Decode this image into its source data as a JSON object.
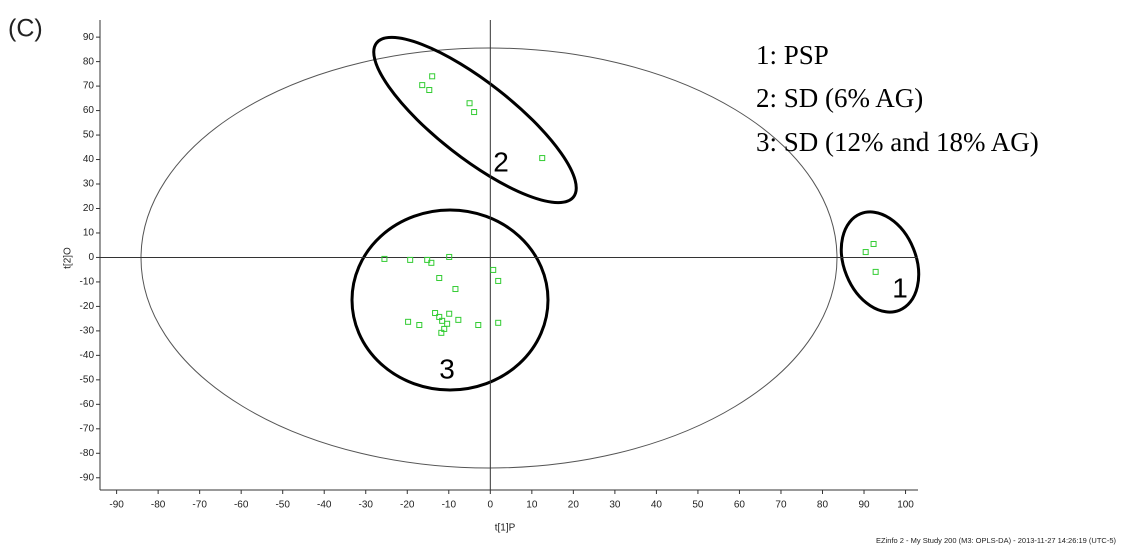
{
  "chart_data": {
    "type": "scatter",
    "panel_label": "(C)",
    "x_label": "t[1]P",
    "y_label": "t[2]O",
    "footer": "EZinfo 2 - My Study 200 (M3: OPLS-DA) - 2013-11-27 14:26:19 (UTC-5)",
    "annotations": {
      "cluster_labels": [
        "1",
        "2",
        "3"
      ],
      "legend_text": [
        "1: PSP",
        "2: SD (6% AG)",
        "3: SD (12% and 18% AG)"
      ]
    },
    "xlim": [
      -94,
      103
    ],
    "ylim": [
      -95,
      97
    ],
    "xticks": [
      -90,
      -80,
      -70,
      -60,
      -50,
      -40,
      -30,
      -20,
      -10,
      0,
      10,
      20,
      30,
      40,
      50,
      60,
      70,
      80,
      90,
      100
    ],
    "yticks": [
      -90,
      -80,
      -70,
      -60,
      -50,
      -40,
      -30,
      -20,
      -10,
      0,
      10,
      20,
      30,
      40,
      50,
      60,
      70,
      80,
      90
    ],
    "color": "#33cc33",
    "x": [
      -14,
      -16.4,
      -14.7,
      -5,
      -3.9,
      12.5,
      92.3,
      90.4,
      92.8,
      -25.5,
      -19.3,
      -15.2,
      -14.2,
      -9.9,
      0.7,
      1.9,
      -12.3,
      -8.4,
      -13.3,
      -12.3,
      -9.9,
      -19.8,
      -17.1,
      -11.6,
      -10.4,
      -7.7,
      -11.1,
      -11.8,
      -2.9,
      1.9
    ],
    "y": [
      74,
      70.4,
      68.4,
      63,
      59.4,
      40.6,
      5.5,
      2.2,
      -5.9,
      -0.6,
      -1,
      -1,
      -2.2,
      0.2,
      -5.1,
      -9.6,
      -8.4,
      -12.9,
      -22.7,
      -24.3,
      -23,
      -26.3,
      -27.6,
      -25.9,
      -27.1,
      -25.5,
      -29.2,
      -30.8,
      -27.6,
      -26.7
    ]
  }
}
